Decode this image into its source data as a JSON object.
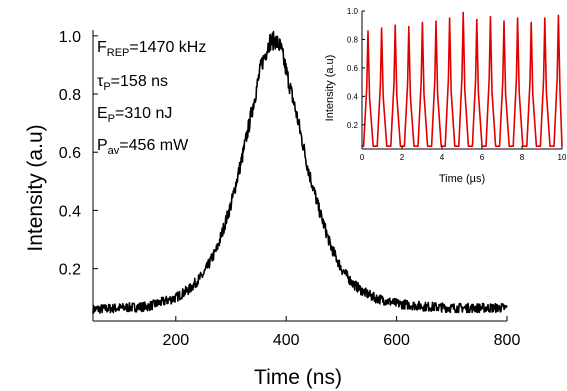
{
  "chart_data": [
    {
      "type": "line",
      "title": "",
      "xlabel": "Time (ns)",
      "ylabel": "Intensity (a.u)",
      "xlim": [
        50,
        800
      ],
      "ylim": [
        0.02,
        1.02
      ],
      "xticks": [
        200,
        400,
        600,
        800
      ],
      "xtick_labels": [
        "200",
        "400",
        "600",
        "800"
      ],
      "yticks": [
        0.2,
        0.4,
        0.6,
        0.8,
        1.0
      ],
      "ytick_labels": [
        "0.2",
        "0.4",
        "0.6",
        "0.8",
        "1.0"
      ],
      "grid": false,
      "series": [
        {
          "color": "#000000",
          "x": [
            50,
            100,
            150,
            200,
            225,
            250,
            275,
            300,
            320,
            340,
            355,
            370,
            380,
            390,
            400,
            420,
            440,
            460,
            480,
            500,
            520,
            540,
            560,
            580,
            600,
            650,
            700,
            750,
            800
          ],
          "y": [
            0.06,
            0.065,
            0.07,
            0.1,
            0.13,
            0.18,
            0.27,
            0.42,
            0.58,
            0.76,
            0.9,
            0.98,
            0.985,
            0.96,
            0.88,
            0.72,
            0.54,
            0.4,
            0.28,
            0.2,
            0.15,
            0.12,
            0.1,
            0.09,
            0.08,
            0.07,
            0.065,
            0.065,
            0.065
          ]
        }
      ],
      "annotations": [
        {
          "base": "F",
          "sub": "REP",
          "rest": "=1470 kHz"
        },
        {
          "base": "τ",
          "sub": "P",
          "rest": "=158 ns"
        },
        {
          "base": "E",
          "sub": "P",
          "rest": "=310 nJ"
        },
        {
          "base": "P",
          "sub": "av",
          "rest": "=456 mW"
        }
      ]
    },
    {
      "type": "line",
      "title": "",
      "xlabel": "Time (µs)",
      "ylabel": "Intensity (a.u)",
      "xlim": [
        0,
        10
      ],
      "ylim": [
        0.03,
        1.0
      ],
      "xticks": [
        0,
        2,
        4,
        6,
        8,
        10
      ],
      "xtick_labels": [
        "0",
        "2",
        "4",
        "6",
        "8",
        "10"
      ],
      "yticks": [
        0.2,
        0.4,
        0.6,
        0.8,
        1.0
      ],
      "ytick_labels": [
        "0.2",
        "0.4",
        "0.6",
        "0.8",
        "1.0"
      ],
      "grid": false,
      "series": [
        {
          "color": "#e00000",
          "pulse_period_us": 0.68,
          "pulse_peaks_x": [
            0.3,
            0.98,
            1.66,
            2.34,
            3.02,
            3.7,
            4.38,
            5.06,
            5.74,
            6.42,
            7.1,
            7.78,
            8.46,
            9.14,
            9.82
          ],
          "pulse_peaks_y": [
            0.86,
            0.88,
            0.9,
            0.89,
            0.92,
            0.93,
            0.95,
            0.99,
            0.94,
            0.96,
            0.93,
            0.95,
            0.92,
            0.95,
            0.97
          ],
          "baseline": 0.05
        }
      ]
    }
  ]
}
